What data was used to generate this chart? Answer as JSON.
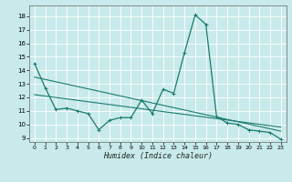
{
  "xlabel": "Humidex (Indice chaleur)",
  "background_color": "#c8eaea",
  "grid_color": "#ffffff",
  "line_color": "#1a7a6e",
  "xlim": [
    -0.5,
    23.5
  ],
  "ylim": [
    8.7,
    18.8
  ],
  "yticks": [
    9,
    10,
    11,
    12,
    13,
    14,
    15,
    16,
    17,
    18
  ],
  "xticks": [
    0,
    1,
    2,
    3,
    4,
    5,
    6,
    7,
    8,
    9,
    10,
    11,
    12,
    13,
    14,
    15,
    16,
    17,
    18,
    19,
    20,
    21,
    22,
    23
  ],
  "series1": {
    "x": [
      0,
      1,
      2,
      3,
      4,
      5,
      6,
      7,
      8,
      9,
      10,
      11,
      12,
      13,
      14,
      15,
      16,
      17,
      18,
      19,
      20,
      21,
      22,
      23
    ],
    "y": [
      14.5,
      12.7,
      11.1,
      11.2,
      11.0,
      10.8,
      9.6,
      10.3,
      10.5,
      10.5,
      11.8,
      10.8,
      12.6,
      12.3,
      15.3,
      18.1,
      17.4,
      10.6,
      10.1,
      10.0,
      9.6,
      9.5,
      9.4,
      8.9
    ]
  },
  "series2": {
    "x": [
      0,
      23
    ],
    "y": [
      13.5,
      9.5
    ]
  },
  "series3": {
    "x": [
      0,
      23
    ],
    "y": [
      12.2,
      9.8
    ]
  }
}
